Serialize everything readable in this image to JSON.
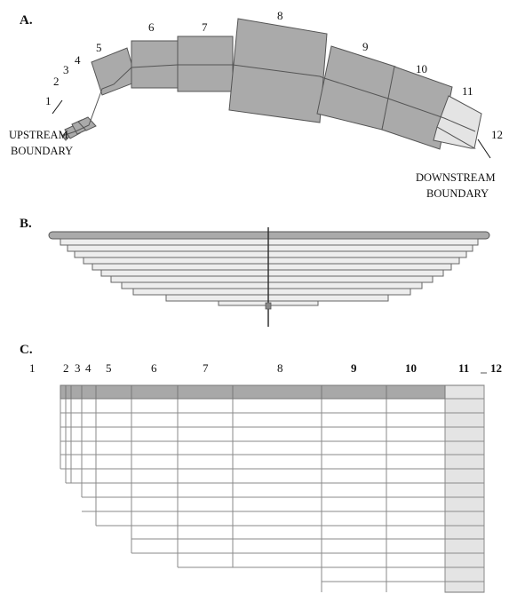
{
  "panels": {
    "a": "A.",
    "b": "B.",
    "c": "C."
  },
  "segments": [
    "1",
    "2",
    "3",
    "4",
    "5",
    "6",
    "7",
    "8",
    "9",
    "10",
    "11",
    "12"
  ],
  "boundaries": {
    "upstream": [
      "UPSTREAM",
      "BOUNDARY"
    ],
    "downstream": [
      "DOWNSTREAM",
      "BOUNDARY"
    ]
  },
  "colors": {
    "segment_fill": "#aaaaaa",
    "segment_light": "#e4e4e4",
    "outline": "#555555",
    "grid_line": "#999999",
    "header_fill": "#a8a8a8"
  }
}
